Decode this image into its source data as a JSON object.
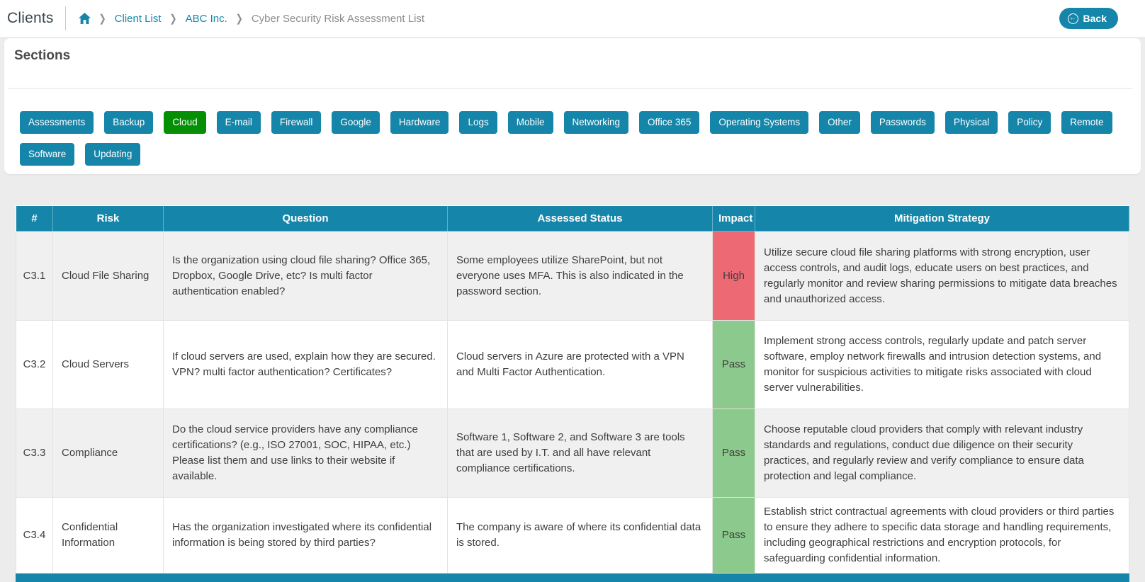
{
  "header": {
    "title": "Clients",
    "breadcrumb": [
      {
        "label": "Client List",
        "link": true
      },
      {
        "label": "ABC Inc.",
        "link": true
      },
      {
        "label": "Cyber Security Risk Assessment List",
        "link": false
      }
    ],
    "back_label": "Back"
  },
  "icons": {
    "home": "home-icon",
    "breadcrumb_separator_glyph": "❯",
    "back_arrow_glyph": "←"
  },
  "sections": {
    "title": "Sections",
    "selected": "Cloud",
    "buttons": [
      "Assessments",
      "Backup",
      "Cloud",
      "E-mail",
      "Firewall",
      "Google",
      "Hardware",
      "Logs",
      "Mobile",
      "Networking",
      "Office 365",
      "Operating Systems",
      "Other",
      "Passwords",
      "Physical",
      "Policy",
      "Remote",
      "Software",
      "Updating"
    ]
  },
  "table": {
    "columns": [
      "#",
      "Risk",
      "Question",
      "Assessed Status",
      "Impact",
      "Mitigation Strategy"
    ],
    "rows": [
      {
        "id": "C3.1",
        "risk": "Cloud File Sharing",
        "question": "Is the organization using cloud file sharing? Office 365, Dropbox, Google Drive, etc? Is multi factor authentication enabled?",
        "status": "Some employees utilize SharePoint, but not everyone uses MFA. This is also indicated in the password section.",
        "impact": "High",
        "mitigation": "Utilize secure cloud file sharing platforms with strong encryption, user access controls, and audit logs, educate users on best practices, and regularly monitor and review sharing permissions to mitigate data breaches and unauthorized access."
      },
      {
        "id": "C3.2",
        "risk": "Cloud Servers",
        "question": "If cloud servers are used, explain how they are secured. VPN? multi factor authentication? Certificates?",
        "status": "Cloud servers in Azure are protected with a VPN and Multi Factor Authentication.",
        "impact": "Pass",
        "mitigation": "Implement strong access controls, regularly update and patch server software, employ network firewalls and intrusion detection systems, and monitor for suspicious activities to mitigate risks associated with cloud server vulnerabilities."
      },
      {
        "id": "C3.3",
        "risk": "Compliance",
        "question": "Do the cloud service providers have any compliance certifications? (e.g., ISO 27001, SOC, HIPAA, etc.) Please list them and use links to their website if available.",
        "status": "Software 1, Software 2, and Software 3 are tools that are used by I.T. and all have relevant compliance certifications.",
        "impact": "Pass",
        "mitigation": "Choose reputable cloud providers that comply with relevant industry standards and regulations, conduct due diligence on their security practices, and regularly review and verify compliance to ensure data protection and legal compliance."
      },
      {
        "id": "C3.4",
        "risk": "Confidential Information",
        "question": "Has the organization investigated where its confidential information is being stored by third parties?",
        "status": "The company is aware of where its confidential data is stored.",
        "impact": "Pass",
        "mitigation": "Establish strict contractual agreements with cloud providers or third parties to ensure they adhere to specific data storage and handling requirements, including geographical restrictions and encryption protocols, for safeguarding confidential information."
      }
    ]
  },
  "colors": {
    "accent_teal": "#1586a9",
    "selected_green": "#058f05",
    "impact_high": "#ed6a75",
    "impact_pass": "#8cc98c"
  }
}
